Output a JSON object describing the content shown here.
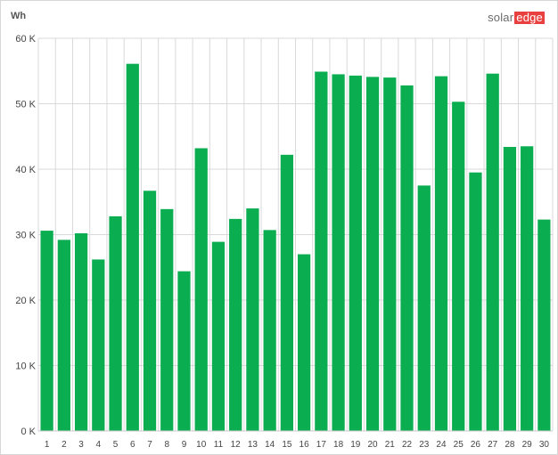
{
  "brand": {
    "part1": "solar",
    "part2": "edge"
  },
  "colors": {
    "bar": "#0aad4f",
    "grid": "#d9d9d9",
    "brand_accent": "#e8403f"
  },
  "chart_data": {
    "type": "bar",
    "ylabel": "Wh",
    "ylim": [
      0,
      60000
    ],
    "yticks": [
      {
        "value": 0,
        "label": "0 K"
      },
      {
        "value": 10000,
        "label": "10 K"
      },
      {
        "value": 20000,
        "label": "20 K"
      },
      {
        "value": 30000,
        "label": "30 K"
      },
      {
        "value": 40000,
        "label": "40 K"
      },
      {
        "value": 50000,
        "label": "50 K"
      },
      {
        "value": 60000,
        "label": "60 K"
      }
    ],
    "grid": true,
    "categories": [
      "1",
      "2",
      "3",
      "4",
      "5",
      "6",
      "7",
      "8",
      "9",
      "10",
      "11",
      "12",
      "13",
      "14",
      "15",
      "16",
      "17",
      "18",
      "19",
      "20",
      "21",
      "22",
      "23",
      "24",
      "25",
      "26",
      "27",
      "28",
      "29",
      "30"
    ],
    "values": [
      30600,
      29200,
      30200,
      26200,
      32800,
      56100,
      36700,
      33900,
      24400,
      43200,
      28900,
      32400,
      34000,
      30700,
      42200,
      27000,
      54900,
      54500,
      54300,
      54100,
      54000,
      52800,
      37500,
      54200,
      50300,
      39500,
      54600,
      43400,
      43500,
      32300
    ]
  }
}
